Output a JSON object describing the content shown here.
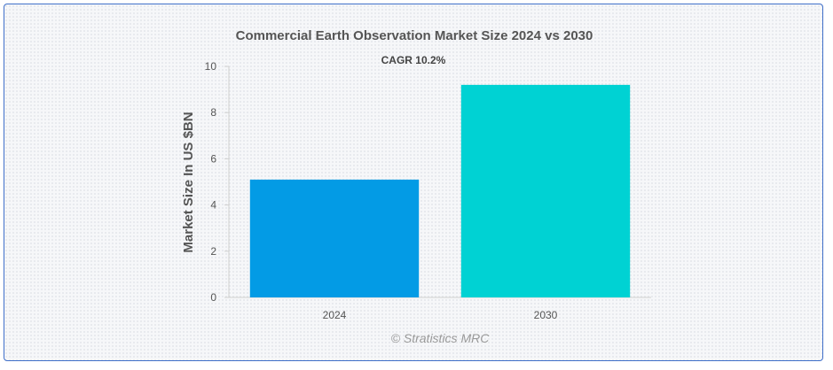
{
  "chart_data": {
    "type": "bar",
    "title": "Commercial Earth Observation Market Size 2024 vs 2030",
    "subtitle": "CAGR 10.2%",
    "categories": [
      "2024",
      "2030"
    ],
    "values": [
      5.1,
      9.2
    ],
    "ylabel": "Market Size In US $BN",
    "xlabel": "",
    "ylim": [
      0,
      10
    ],
    "yticks": [
      "0",
      "2",
      "4",
      "6",
      "8",
      "10"
    ],
    "colors": [
      "#039be5",
      "#00d2d3"
    ],
    "grid": false,
    "legend": "none"
  },
  "credit": "© Stratistics MRC"
}
